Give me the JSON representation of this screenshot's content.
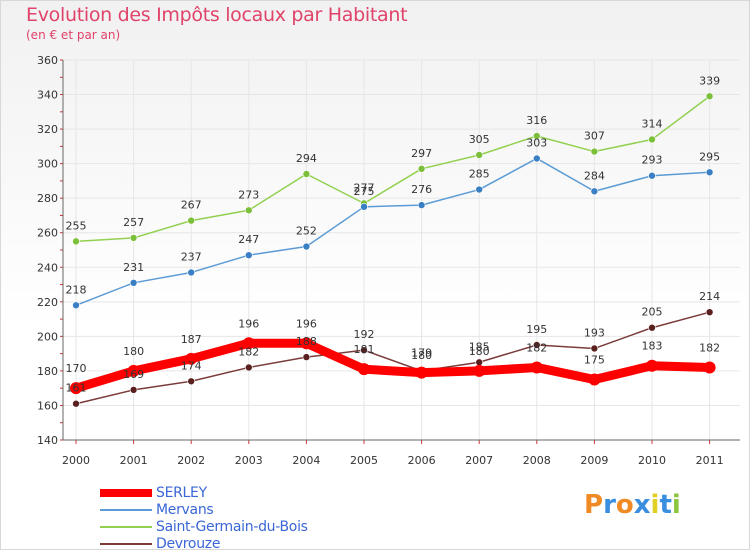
{
  "colors": {
    "title": "#e0436a",
    "axis": "#666666",
    "grid": "#e6e6e6",
    "label": "#333333",
    "legend_text": "#3a66d6"
  },
  "logo": {
    "letters": [
      "P",
      "r",
      "o",
      "x",
      "i",
      "t",
      "i"
    ],
    "colors": [
      "#f08a24",
      "#3a8ee0",
      "#f08a24",
      "#3a8ee0",
      "#e0d024",
      "#3a8ee0",
      "#8cc63f"
    ]
  },
  "chart_data": {
    "type": "line",
    "title": "Evolution des Impôts locaux par Habitant",
    "subtitle": "(en € et par an)",
    "xlabel": "",
    "ylabel": "",
    "x": [
      "2000",
      "2001",
      "2002",
      "2003",
      "2004",
      "2005",
      "2006",
      "2007",
      "2008",
      "2009",
      "2010",
      "2011"
    ],
    "ylim": [
      140,
      360
    ],
    "yticks": [
      "140",
      "160",
      "180",
      "200",
      "220",
      "240",
      "260",
      "280",
      "300",
      "320",
      "340",
      "360"
    ],
    "ytick_values": [
      140,
      160,
      180,
      200,
      220,
      240,
      260,
      280,
      300,
      320,
      340,
      360
    ],
    "grid": true,
    "series": [
      {
        "name": "SERLEY",
        "color": "#ff0000",
        "bold": true,
        "values": [
          170,
          180,
          187,
          196,
          196,
          181,
          179,
          180,
          182,
          175,
          183,
          182
        ],
        "labels": [
          "170",
          "180",
          "187",
          "196",
          "196",
          "181",
          "179",
          "180",
          "182",
          "175",
          "183",
          "182"
        ]
      },
      {
        "name": "Mervans",
        "color": "#5b9bd5",
        "marker": "#3a7fc4",
        "values": [
          218,
          231,
          237,
          247,
          252,
          275,
          276,
          285,
          303,
          284,
          293,
          295
        ],
        "labels": [
          "218",
          "231",
          "237",
          "247",
          "252",
          "275",
          "276",
          "285",
          "303",
          "284",
          "293",
          "295"
        ]
      },
      {
        "name": "Saint-Germain-du-Bois",
        "color": "#92d050",
        "marker": "#7cbf3a",
        "values": [
          255,
          257,
          267,
          273,
          294,
          277,
          297,
          305,
          316,
          307,
          314,
          339
        ],
        "labels": [
          "255",
          "257",
          "267",
          "273",
          "294",
          "277",
          "297",
          "305",
          "316",
          "307",
          "314",
          "339"
        ]
      },
      {
        "name": "Devrouze",
        "color": "#7b3b3b",
        "marker": "#5a1f1f",
        "values": [
          161,
          169,
          174,
          182,
          188,
          192,
          180,
          185,
          195,
          193,
          205,
          214
        ],
        "labels": [
          "161",
          "169",
          "174",
          "182",
          "188",
          "192",
          "180",
          "185",
          "195",
          "193",
          "205",
          "214"
        ]
      }
    ]
  }
}
